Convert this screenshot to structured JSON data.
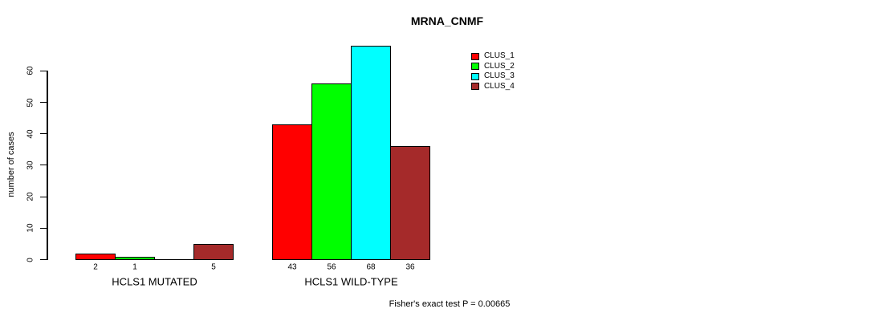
{
  "chart_data": {
    "type": "bar",
    "title": "MRNA_CNMF",
    "ylabel": "number of cases",
    "xlabel": "",
    "ylim": [
      0,
      68
    ],
    "yticks": [
      0,
      10,
      20,
      30,
      40,
      50,
      60
    ],
    "grid": false,
    "legend_position": "top-right",
    "series": [
      {
        "name": "CLUS_1",
        "color": "#ff0000"
      },
      {
        "name": "CLUS_2",
        "color": "#00ff00"
      },
      {
        "name": "CLUS_3",
        "color": "#00ffff"
      },
      {
        "name": "CLUS_4",
        "color": "#a52a2a"
      }
    ],
    "groups": [
      {
        "label": "HCLS1 MUTATED",
        "values": [
          2,
          1,
          0,
          5
        ],
        "bar_labels": [
          "2",
          "1",
          "",
          "5"
        ]
      },
      {
        "label": "HCLS1 WILD-TYPE",
        "values": [
          43,
          56,
          68,
          36
        ],
        "bar_labels": [
          "43",
          "56",
          "68",
          "36"
        ]
      }
    ],
    "annotation": "Fisher's exact test P = 0.00665"
  }
}
